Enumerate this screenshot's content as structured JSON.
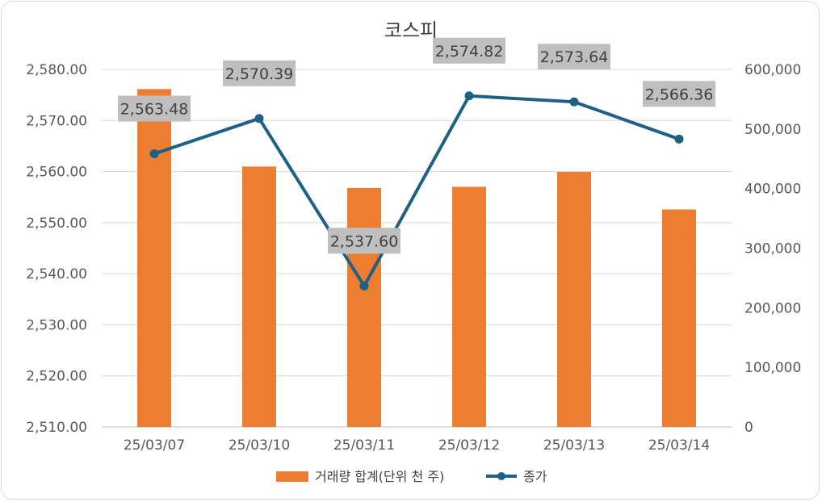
{
  "chart_data": {
    "type": "bar",
    "title": "코스피",
    "categories": [
      "25/03/07",
      "25/03/10",
      "25/03/11",
      "25/03/12",
      "25/03/13",
      "25/03/14"
    ],
    "series": [
      {
        "name": "거래량 합계(단위 천 주)",
        "type": "bar",
        "axis": "right",
        "color": "#ED7D31",
        "values": [
          567000,
          437000,
          401000,
          403000,
          428000,
          365000
        ]
      },
      {
        "name": "종가",
        "type": "line",
        "axis": "left",
        "color": "#1F6185",
        "values": [
          2563.48,
          2570.39,
          2537.6,
          2574.82,
          2573.64,
          2566.36
        ],
        "data_labels": [
          "2,563.48",
          "2,570.39",
          "2,537.60",
          "2,574.82",
          "2,573.64",
          "2,566.36"
        ]
      }
    ],
    "y_left": {
      "min": 2510,
      "max": 2580,
      "ticks": [
        "2,580.00",
        "2,570.00",
        "2,560.00",
        "2,550.00",
        "2,540.00",
        "2,530.00",
        "2,520.00",
        "2,510.00"
      ]
    },
    "y_right": {
      "min": 0,
      "max": 600000,
      "ticks": [
        "600,000",
        "500,000",
        "400,000",
        "300,000",
        "200,000",
        "100,000",
        "0"
      ]
    },
    "grid": true,
    "legend_position": "bottom",
    "data_label_bg": "#BFBFBF"
  }
}
